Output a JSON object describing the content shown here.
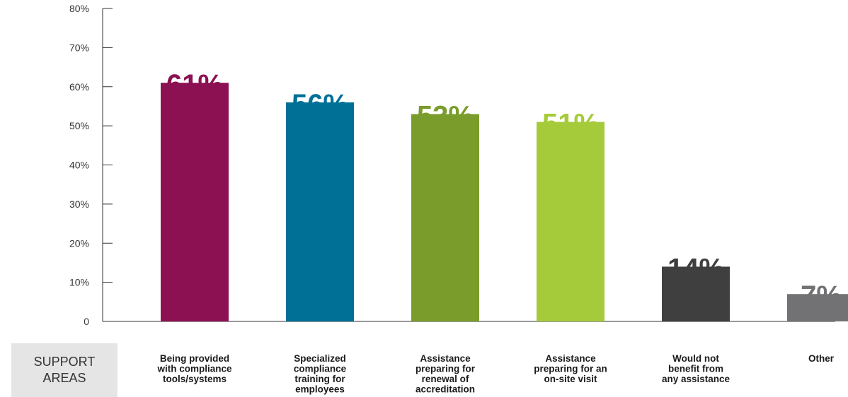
{
  "side_label": {
    "line1": "SUPPORT",
    "line2": "AREAS"
  },
  "chart_data": {
    "type": "bar",
    "title": "",
    "xlabel": "",
    "ylabel": "",
    "ylim": [
      0,
      80
    ],
    "yticks": [
      "0",
      "10%",
      "20%",
      "30%",
      "40%",
      "50%",
      "60%",
      "70%",
      "80%"
    ],
    "ytick_values": [
      0,
      10,
      20,
      30,
      40,
      50,
      60,
      70,
      80
    ],
    "grid": false,
    "categories": [
      [
        "Being provided",
        "with compliance",
        "tools/systems"
      ],
      [
        "Specialized",
        "compliance",
        "training for",
        "employees"
      ],
      [
        "Assistance",
        "preparing for",
        "renewal of",
        "accreditation"
      ],
      [
        "Assistance",
        "preparing for an",
        "on-site visit"
      ],
      [
        "Would not",
        "benefit from",
        "any assistance"
      ],
      [
        "Other"
      ]
    ],
    "values": [
      61,
      56,
      53,
      51,
      14,
      7
    ],
    "data_labels": [
      "61%",
      "56%",
      "53%",
      "51%",
      "14%",
      "7%"
    ],
    "colors": [
      "#8b1152",
      "#007096",
      "#7a9c2a",
      "#a6cb3a",
      "#3f3f3f",
      "#727274"
    ]
  }
}
